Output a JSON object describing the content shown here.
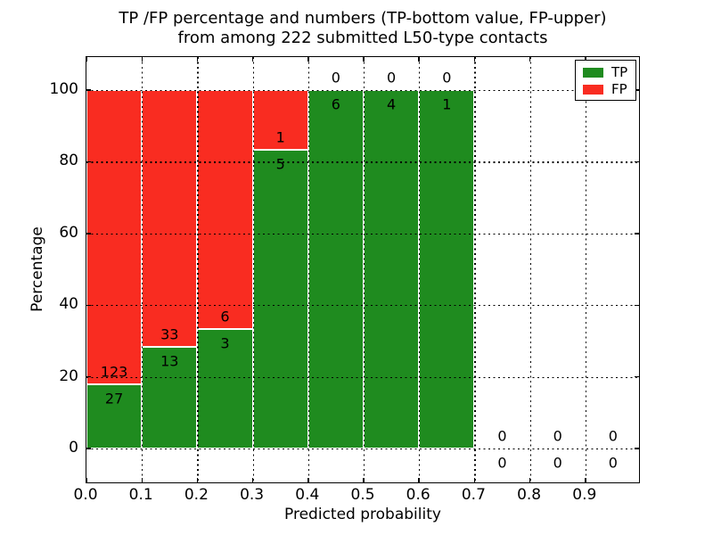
{
  "title": {
    "line1": "TP /FP percentage and numbers (TP-bottom value, FP-upper)",
    "line2": "from among 222 submitted L50-type contacts"
  },
  "axes": {
    "xlabel": "Predicted probability",
    "ylabel": "Percentage",
    "x_tick_labels": [
      "0.0",
      "0.1",
      "0.2",
      "0.3",
      "0.4",
      "0.5",
      "0.6",
      "0.7",
      "0.8",
      "0.9"
    ],
    "y_tick_labels": [
      "0",
      "20",
      "40",
      "60",
      "80",
      "100"
    ]
  },
  "legend": {
    "items": [
      {
        "label": "TP",
        "color_role": "tp"
      },
      {
        "label": "FP",
        "color_role": "fp"
      }
    ]
  },
  "colors": {
    "tp": "#1f8b1f",
    "fp": "#f92c21",
    "bar_edge": "#ffffff",
    "grid": "#000000",
    "axis": "#000000",
    "text": "#000000",
    "background": "#ffffff"
  },
  "chart_data": {
    "type": "bar",
    "stacked": true,
    "title": "TP /FP percentage and numbers (TP-bottom value, FP-upper) from among 222 submitted L50-type contacts",
    "xlabel": "Predicted probability",
    "ylabel": "Percentage",
    "xlim": [
      0.0,
      1.0
    ],
    "ylim": [
      -10,
      110
    ],
    "x_ticks": [
      0.0,
      0.1,
      0.2,
      0.3,
      0.4,
      0.5,
      0.6,
      0.7,
      0.8,
      0.9
    ],
    "y_ticks": [
      0,
      20,
      40,
      60,
      80,
      100
    ],
    "grid": true,
    "legend_position": "upper right",
    "total_submitted": 222,
    "series": [
      {
        "name": "TP",
        "position": "bottom",
        "color_role": "tp"
      },
      {
        "name": "FP",
        "position": "top",
        "color_role": "fp"
      }
    ],
    "bins": [
      {
        "x_range": [
          0.0,
          0.1
        ],
        "tp": 27,
        "fp": 123,
        "tp_pct": 18.0,
        "fp_pct": 82.0
      },
      {
        "x_range": [
          0.1,
          0.2
        ],
        "tp": 13,
        "fp": 33,
        "tp_pct": 28.3,
        "fp_pct": 71.7
      },
      {
        "x_range": [
          0.2,
          0.3
        ],
        "tp": 3,
        "fp": 6,
        "tp_pct": 33.3,
        "fp_pct": 66.7
      },
      {
        "x_range": [
          0.3,
          0.4
        ],
        "tp": 5,
        "fp": 1,
        "tp_pct": 83.3,
        "fp_pct": 16.7
      },
      {
        "x_range": [
          0.4,
          0.5
        ],
        "tp": 6,
        "fp": 0,
        "tp_pct": 100.0,
        "fp_pct": 0.0
      },
      {
        "x_range": [
          0.5,
          0.6
        ],
        "tp": 4,
        "fp": 0,
        "tp_pct": 100.0,
        "fp_pct": 0.0
      },
      {
        "x_range": [
          0.6,
          0.7
        ],
        "tp": 1,
        "fp": 0,
        "tp_pct": 100.0,
        "fp_pct": 0.0
      },
      {
        "x_range": [
          0.7,
          0.8
        ],
        "tp": 0,
        "fp": 0,
        "tp_pct": 0.0,
        "fp_pct": 0.0
      },
      {
        "x_range": [
          0.8,
          0.9
        ],
        "tp": 0,
        "fp": 0,
        "tp_pct": 0.0,
        "fp_pct": 0.0
      },
      {
        "x_range": [
          0.9,
          1.0
        ],
        "tp": 0,
        "fp": 0,
        "tp_pct": 0.0,
        "fp_pct": 0.0
      }
    ]
  }
}
